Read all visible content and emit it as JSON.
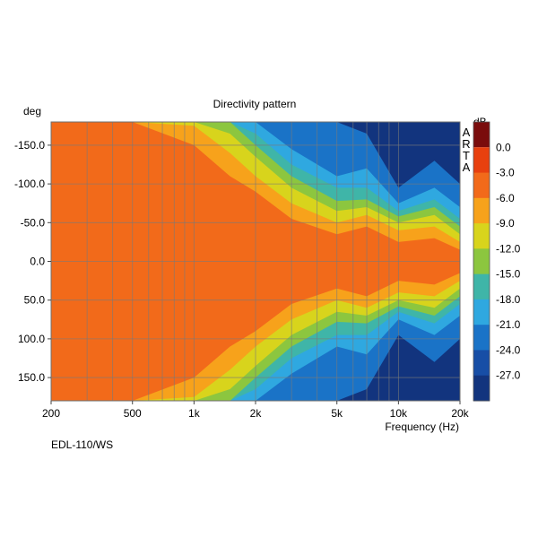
{
  "chart_data": {
    "type": "heatmap",
    "title": "Directivity pattern",
    "xlabel": "Frequency (Hz)",
    "ylabel": "deg",
    "xscale": "log",
    "xlim": [
      200,
      20000
    ],
    "ylim": [
      -180,
      180
    ],
    "x_ticks": [
      {
        "value": 200,
        "label": "200"
      },
      {
        "value": 500,
        "label": "500"
      },
      {
        "value": 1000,
        "label": "1k"
      },
      {
        "value": 2000,
        "label": "2k"
      },
      {
        "value": 5000,
        "label": "5k"
      },
      {
        "value": 10000,
        "label": "10k"
      },
      {
        "value": 20000,
        "label": "20k"
      }
    ],
    "y_ticks": [
      {
        "value": -150,
        "label": "-150.0"
      },
      {
        "value": -100,
        "label": "-100.0"
      },
      {
        "value": -50,
        "label": "-50.0"
      },
      {
        "value": 0,
        "label": "0.0"
      },
      {
        "value": 50,
        "label": "50.0"
      },
      {
        "value": 100,
        "label": "100.0"
      },
      {
        "value": 150,
        "label": "150.0"
      }
    ],
    "grid": true,
    "colorbar": {
      "unit": "dB",
      "levels": [
        {
          "label": "0.0",
          "value": 0,
          "color": "#e8400f"
        },
        {
          "label": "-3.0",
          "value": -3,
          "color": "#f26a1a"
        },
        {
          "label": "-6.0",
          "value": -6,
          "color": "#f7a21b"
        },
        {
          "label": "-9.0",
          "value": -9,
          "color": "#d8d41c"
        },
        {
          "label": "-12.0",
          "value": -12,
          "color": "#8cc63f"
        },
        {
          "label": "-15.0",
          "value": -15,
          "color": "#3fb5a8"
        },
        {
          "label": "-18.0",
          "value": -18,
          "color": "#2fa8e0"
        },
        {
          "label": "-21.0",
          "value": -21,
          "color": "#1a73c7"
        },
        {
          "label": "-24.0",
          "value": -24,
          "color": "#174ea6"
        },
        {
          "label": "-27.0",
          "value": -27,
          "color": "#12347e"
        }
      ],
      "top_color": "#7a0c0c"
    },
    "watermark": "ARTA",
    "model": "EDL-110/WS",
    "summary_coverage_deg": [
      {
        "freq": 200,
        "minus3": 180,
        "minus6": 180,
        "minus9": 180,
        "minus12": 180,
        "minus15": 180,
        "minus18": 180,
        "minus21": 180
      },
      {
        "freq": 500,
        "minus3": 180,
        "minus6": 180,
        "minus9": 180,
        "minus12": 180,
        "minus15": 180,
        "minus18": 180,
        "minus21": 180
      },
      {
        "freq": 1000,
        "minus3": 150,
        "minus6": 175,
        "minus9": 180,
        "minus12": 180,
        "minus15": 180,
        "minus18": 180,
        "minus21": 180
      },
      {
        "freq": 1500,
        "minus3": 110,
        "minus6": 140,
        "minus9": 165,
        "minus12": 180,
        "minus15": 180,
        "minus18": 180,
        "minus21": 180
      },
      {
        "freq": 2000,
        "minus3": 90,
        "minus6": 110,
        "minus9": 135,
        "minus12": 150,
        "minus15": 165,
        "minus18": 180,
        "minus21": 180
      },
      {
        "freq": 3000,
        "minus3": 55,
        "minus6": 75,
        "minus9": 95,
        "minus12": 110,
        "minus15": 125,
        "minus18": 145,
        "minus21": 180
      },
      {
        "freq": 5000,
        "minus3": 35,
        "minus6": 50,
        "minus9": 65,
        "minus12": 78,
        "minus15": 95,
        "minus18": 110,
        "minus21": 180
      },
      {
        "freq": 7000,
        "minus3": 45,
        "minus6": 60,
        "minus9": 70,
        "minus12": 80,
        "minus15": 95,
        "minus18": 120,
        "minus21": 165
      },
      {
        "freq": 10000,
        "minus3": 25,
        "minus6": 40,
        "minus9": 50,
        "minus12": 58,
        "minus15": 65,
        "minus18": 75,
        "minus21": 95
      },
      {
        "freq": 15000,
        "minus3": 30,
        "minus6": 45,
        "minus9": 60,
        "minus12": 70,
        "minus15": 80,
        "minus18": 95,
        "minus21": 130
      },
      {
        "freq": 20000,
        "minus3": 15,
        "minus6": 25,
        "minus9": 35,
        "minus12": 45,
        "minus15": 55,
        "minus18": 70,
        "minus21": 100
      }
    ]
  }
}
